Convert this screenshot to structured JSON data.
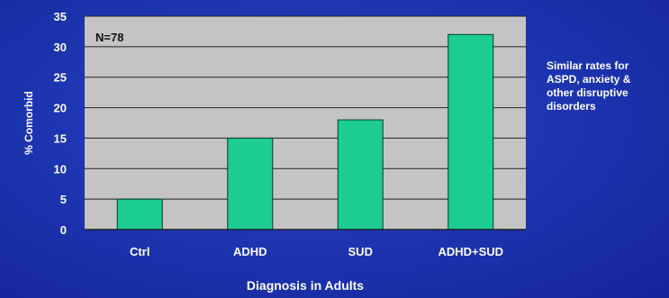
{
  "chart_data": {
    "type": "bar",
    "title": "",
    "categories": [
      "Ctrl",
      "ADHD",
      "SUD",
      "ADHD+SUD"
    ],
    "values": [
      5,
      15,
      18,
      32
    ],
    "xlabel": "Diagnosis in Adults",
    "ylabel": "% Comorbid",
    "ylim": [
      0,
      35
    ],
    "yticks": [
      0,
      5,
      10,
      15,
      20,
      25,
      30,
      35
    ],
    "grid": true,
    "annotation": "N=78",
    "colors": {
      "bar": "#1ccc92",
      "bar_stroke": "#0a3a2a",
      "plot_background": "#c4c4c4",
      "grid": "#222222",
      "axis_text": "#ffffff",
      "background": "#1e36b2"
    }
  },
  "side_note": {
    "lines": [
      "Similar rates for",
      "ASPD, anxiety &",
      "other disruptive",
      "disorders"
    ]
  }
}
